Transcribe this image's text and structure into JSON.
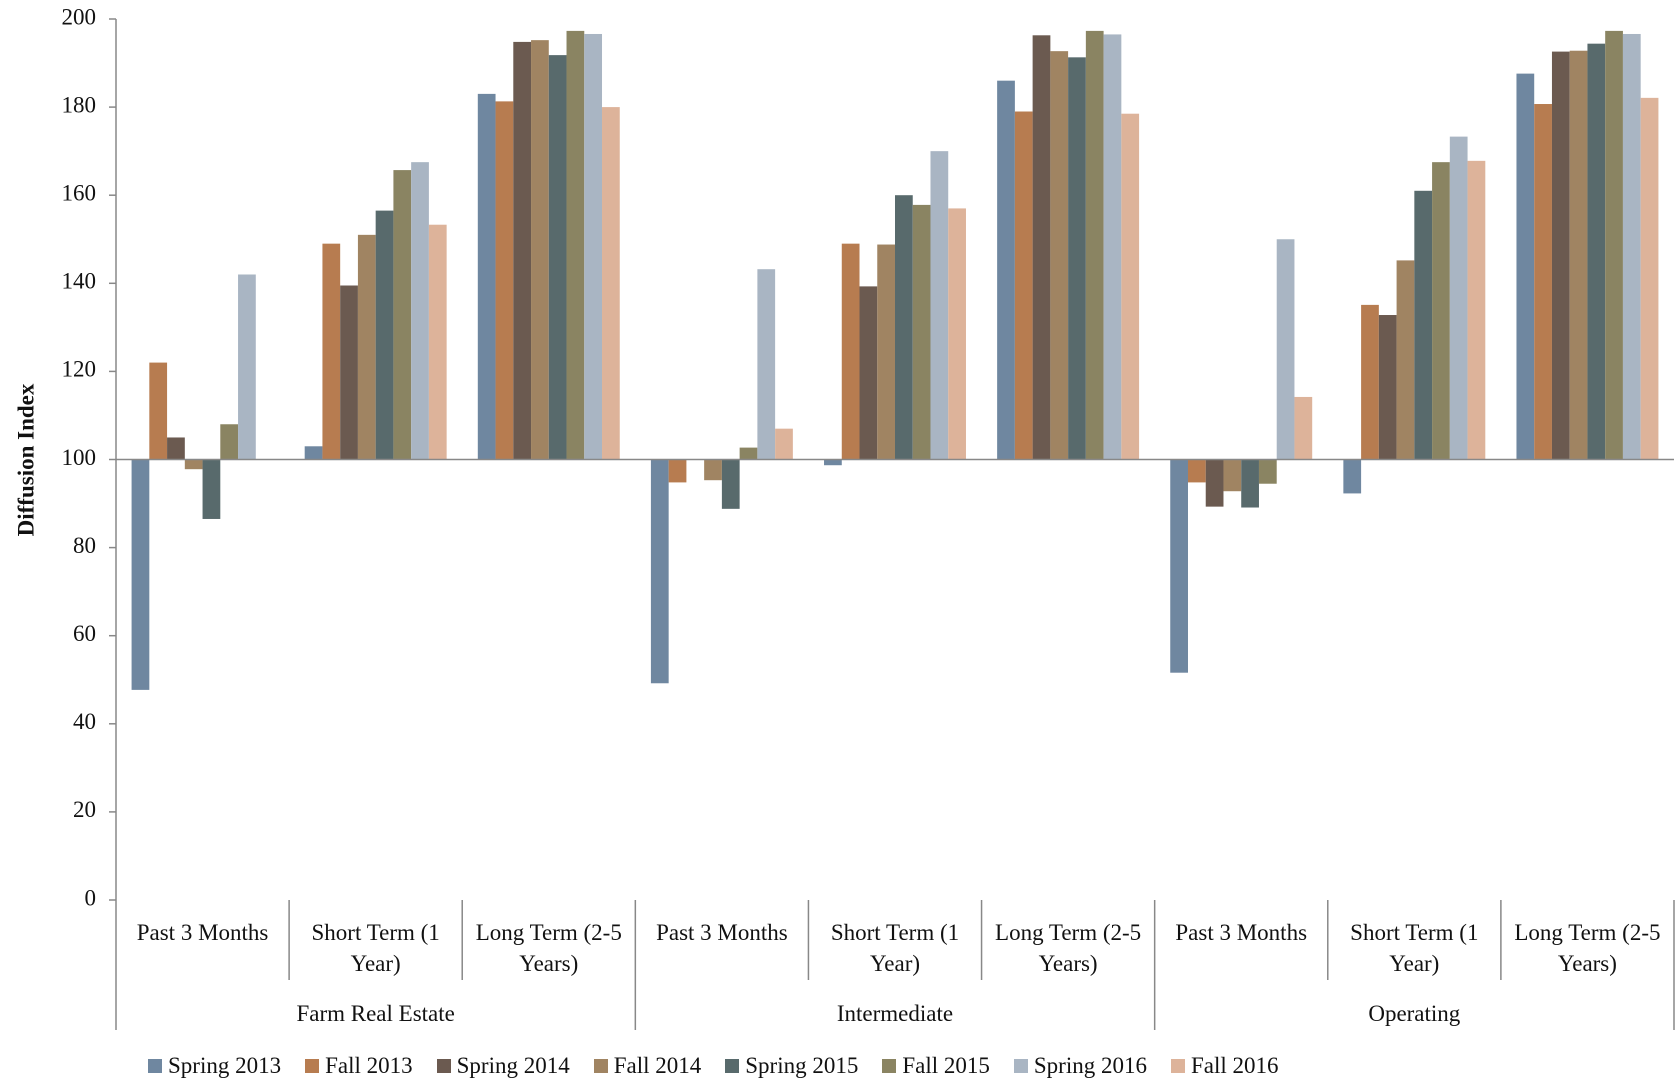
{
  "chart_data": {
    "type": "bar",
    "y_label": "Diffusion Index",
    "categories": [
      "Past 3 Months",
      "Short Term (1 Year)",
      "Long Term (2-5 Years)",
      "Past 3 Months",
      "Short Term (1 Year)",
      "Long Term (2-5 Years)",
      "Past 3 Months",
      "Short Term (1 Year)",
      "Long Term (2-5 Years)"
    ],
    "category_groups": [
      "Farm Real Estate",
      "Intermediate",
      "Operating"
    ],
    "axis_crossing": 100,
    "ylim": [
      0,
      200
    ],
    "yticks": [
      0,
      20,
      40,
      60,
      80,
      100,
      120,
      140,
      160,
      180,
      200
    ],
    "grid": false,
    "legend": "bottom",
    "series": [
      {
        "name": "Spring 2013",
        "color": "#6f87a0",
        "values": [
          47.7,
          103,
          183,
          49.2,
          98.7,
          186,
          51.6,
          92.3,
          187.6
        ]
      },
      {
        "name": "Fall 2013",
        "color": "#b77c50",
        "values": [
          122,
          149,
          181.3,
          94.8,
          149,
          179,
          94.8,
          135.1,
          180.7
        ]
      },
      {
        "name": "Spring 2014",
        "color": "#6b5a50",
        "values": [
          105,
          139.5,
          194.8,
          100,
          139.3,
          196.3,
          89.3,
          132.8,
          192.6
        ]
      },
      {
        "name": "Fall 2014",
        "color": "#a08462",
        "values": [
          97.8,
          151,
          195.2,
          95.3,
          148.8,
          192.7,
          92.8,
          145.2,
          192.8
        ]
      },
      {
        "name": "Spring 2015",
        "color": "#586a6c",
        "values": [
          86.5,
          156.5,
          191.8,
          88.8,
          160,
          191.3,
          89.1,
          161,
          194.4
        ]
      },
      {
        "name": "Fall 2015",
        "color": "#8a8462",
        "values": [
          108,
          165.7,
          197.3,
          102.7,
          157.8,
          197.3,
          94.5,
          167.5,
          197.3
        ]
      },
      {
        "name": "Spring 2016",
        "color": "#a9b5c3",
        "values": [
          142,
          167.5,
          196.6,
          143.2,
          170,
          196.5,
          150,
          173.3,
          196.6
        ]
      },
      {
        "name": "Fall 2016",
        "color": "#ddb39a",
        "values": [
          100,
          153.3,
          180,
          107,
          157,
          178.5,
          114.2,
          167.8,
          182.1
        ]
      }
    ]
  }
}
